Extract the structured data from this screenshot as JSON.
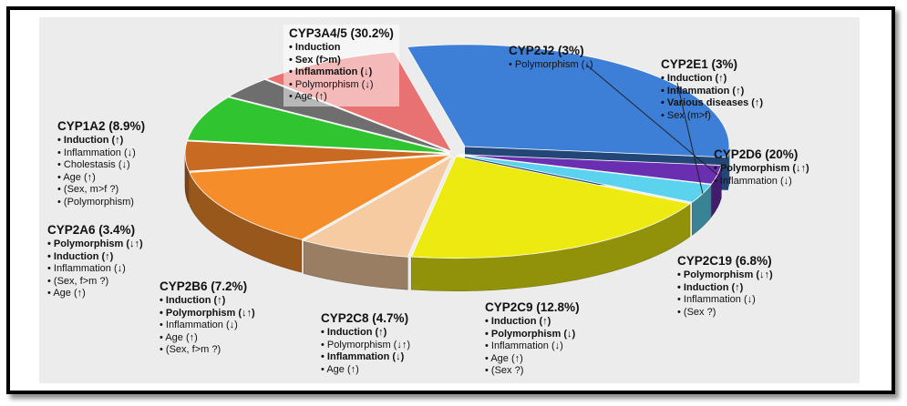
{
  "chart_data": {
    "type": "pie",
    "slices": [
      {
        "name": "CYP3A4/5",
        "percent": "30.2%",
        "value": 30.2,
        "color": "#3d7fd6",
        "effects": [
          {
            "text": "Induction",
            "bold": true
          },
          {
            "text": "Sex (f>m)",
            "bold": true
          },
          {
            "text": "Inflammation (↓)",
            "bold": true
          },
          {
            "text": "Polymorphism (↓)",
            "bold": false
          },
          {
            "text": "Age (↑)",
            "bold": false
          }
        ]
      },
      {
        "name": "CYP2J2",
        "percent": "3%",
        "value": 3,
        "color": "#6a2fb0",
        "effects": [
          {
            "text": "Polymorphism (↓)",
            "bold": false
          }
        ]
      },
      {
        "name": "CYP2E1",
        "percent": "3%",
        "value": 3,
        "color": "#5cd3ee",
        "effects": [
          {
            "text": "Induction (↑)",
            "bold": true
          },
          {
            "text": "Inflammation (↑)",
            "bold": true
          },
          {
            "text": "Various diseases (↑)",
            "bold": true
          },
          {
            "text": "Sex (m>f)",
            "bold": false
          }
        ]
      },
      {
        "name": "CYP2D6",
        "percent": "20%",
        "value": 20,
        "color": "#ecea10",
        "effects": [
          {
            "text": "Polymorphism (↓↑)",
            "bold": true
          },
          {
            "text": "Inflammation (↓)",
            "bold": false
          }
        ]
      },
      {
        "name": "CYP2C19",
        "percent": "6.8%",
        "value": 6.8,
        "color": "#f6cba2",
        "effects": [
          {
            "text": "Polymorphism (↓↑)",
            "bold": true
          },
          {
            "text": "Induction (↑)",
            "bold": true
          },
          {
            "text": "Inflammation (↓)",
            "bold": false
          },
          {
            "text": "(Sex ?)",
            "bold": false
          }
        ]
      },
      {
        "name": "CYP2C9",
        "percent": "12.8%",
        "value": 12.8,
        "color": "#f58d2b",
        "effects": [
          {
            "text": "Induction (↑)",
            "bold": true
          },
          {
            "text": "Polymorphism (↓)",
            "bold": true
          },
          {
            "text": "Inflammation (↓)",
            "bold": false
          },
          {
            "text": "Age (↑)",
            "bold": false
          },
          {
            "text": "(Sex ?)",
            "bold": false
          }
        ]
      },
      {
        "name": "CYP2C8",
        "percent": "4.7%",
        "value": 4.7,
        "color": "#c86a22",
        "effects": [
          {
            "text": "Induction (↑)",
            "bold": true
          },
          {
            "text": "Polymorphism (↓↑)",
            "bold": false
          },
          {
            "text": "Inflammation (↓)",
            "bold": true
          },
          {
            "text": "Age (↑)",
            "bold": false
          }
        ]
      },
      {
        "name": "CYP2B6",
        "percent": "7.2%",
        "value": 7.2,
        "color": "#31c431",
        "effects": [
          {
            "text": "Induction (↑)",
            "bold": true
          },
          {
            "text": "Polymorphism (↓↑)",
            "bold": true
          },
          {
            "text": "Inflammation (↓)",
            "bold": false
          },
          {
            "text": "Age (↑)",
            "bold": false
          },
          {
            "text": "(Sex, f>m ?)",
            "bold": false
          }
        ]
      },
      {
        "name": "CYP2A6",
        "percent": "3.4%",
        "value": 3.4,
        "color": "#6e6e6e",
        "effects": [
          {
            "text": "Polymorphism (↓↑)",
            "bold": true
          },
          {
            "text": "Induction (↑)",
            "bold": true
          },
          {
            "text": "Inflammation (↓)",
            "bold": false
          },
          {
            "text": "(Sex, f>m ?)",
            "bold": false
          },
          {
            "text": "Age (↑)",
            "bold": false
          }
        ]
      },
      {
        "name": "CYP1A2",
        "percent": "8.9%",
        "value": 8.9,
        "color": "#e87272",
        "effects": [
          {
            "text": "Induction (↑)",
            "bold": true
          },
          {
            "text": "Inflammation (↓)",
            "bold": false
          },
          {
            "text": "Cholestasis (↓)",
            "bold": false
          },
          {
            "text": "Age (↑)",
            "bold": false
          },
          {
            "text": "(Sex, m>f ?)",
            "bold": false
          },
          {
            "text": "(Polymorphism)",
            "bold": false
          }
        ]
      }
    ],
    "exploded": "CYP3A4/5",
    "style": "3d"
  }
}
